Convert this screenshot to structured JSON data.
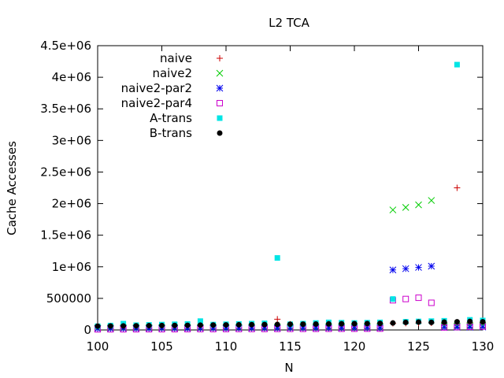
{
  "chart_data": {
    "type": "scatter",
    "title": "L2 TCA",
    "xlabel": "N",
    "ylabel": "Cache Accesses",
    "xlim": [
      100,
      130
    ],
    "ylim": [
      0,
      4500000
    ],
    "xticks": [
      100,
      105,
      110,
      115,
      120,
      125,
      130
    ],
    "xtick_labels": [
      "100",
      "105",
      "110",
      "115",
      "120",
      "125",
      "130"
    ],
    "yticks": [
      0,
      500000,
      1000000,
      1500000,
      2000000,
      2500000,
      3000000,
      3500000,
      4000000,
      4500000
    ],
    "ytick_labels": [
      "0",
      "500000",
      "1e+06",
      "1.5e+06",
      "2e+06",
      "2.5e+06",
      "3e+06",
      "3.5e+06",
      "4e+06",
      "4.5e+06"
    ],
    "grid": false,
    "legend_position": "top-left",
    "series": [
      {
        "name": "naive",
        "marker": "plus",
        "color": "#cc0000",
        "points": [
          [
            100,
            60000
          ],
          [
            101,
            62000
          ],
          [
            102,
            64000
          ],
          [
            103,
            66000
          ],
          [
            104,
            68000
          ],
          [
            105,
            70000
          ],
          [
            106,
            72000
          ],
          [
            107,
            74000
          ],
          [
            108,
            76000
          ],
          [
            109,
            78000
          ],
          [
            110,
            80000
          ],
          [
            111,
            82000
          ],
          [
            112,
            84000
          ],
          [
            113,
            86000
          ],
          [
            114,
            170000
          ],
          [
            115,
            90000
          ],
          [
            116,
            92000
          ],
          [
            117,
            94000
          ],
          [
            118,
            96000
          ],
          [
            119,
            98000
          ],
          [
            120,
            100000
          ],
          [
            121,
            102000
          ],
          [
            122,
            104000
          ],
          [
            123,
            106000
          ],
          [
            124,
            108000
          ],
          [
            125,
            110000
          ],
          [
            126,
            112000
          ],
          [
            127,
            114000
          ],
          [
            128,
            2250000
          ],
          [
            129,
            118000
          ],
          [
            130,
            120000
          ]
        ]
      },
      {
        "name": "naive2",
        "marker": "cross",
        "color": "#00cc00",
        "points": [
          [
            100,
            30000
          ],
          [
            101,
            31000
          ],
          [
            102,
            32000
          ],
          [
            103,
            33000
          ],
          [
            104,
            34000
          ],
          [
            105,
            35000
          ],
          [
            106,
            36000
          ],
          [
            107,
            37000
          ],
          [
            108,
            38000
          ],
          [
            109,
            39000
          ],
          [
            110,
            40000
          ],
          [
            111,
            41000
          ],
          [
            112,
            42000
          ],
          [
            113,
            43000
          ],
          [
            114,
            44000
          ],
          [
            115,
            45000
          ],
          [
            116,
            46000
          ],
          [
            117,
            47000
          ],
          [
            118,
            48000
          ],
          [
            119,
            49000
          ],
          [
            120,
            50000
          ],
          [
            121,
            51000
          ],
          [
            122,
            52000
          ],
          [
            123,
            1900000
          ],
          [
            124,
            1940000
          ],
          [
            125,
            1980000
          ],
          [
            126,
            2050000
          ],
          [
            127,
            60000
          ],
          [
            128,
            62000
          ],
          [
            129,
            64000
          ],
          [
            130,
            66000
          ]
        ]
      },
      {
        "name": "naive2-par2",
        "marker": "star",
        "color": "#0000ee",
        "points": [
          [
            100,
            20000
          ],
          [
            101,
            20500
          ],
          [
            102,
            21000
          ],
          [
            103,
            21500
          ],
          [
            104,
            22000
          ],
          [
            105,
            22500
          ],
          [
            106,
            23000
          ],
          [
            107,
            23500
          ],
          [
            108,
            24000
          ],
          [
            109,
            24500
          ],
          [
            110,
            25000
          ],
          [
            111,
            25500
          ],
          [
            112,
            26000
          ],
          [
            113,
            26500
          ],
          [
            114,
            27000
          ],
          [
            115,
            27500
          ],
          [
            116,
            28000
          ],
          [
            117,
            28500
          ],
          [
            118,
            29000
          ],
          [
            119,
            29500
          ],
          [
            120,
            30000
          ],
          [
            121,
            30500
          ],
          [
            122,
            31000
          ],
          [
            123,
            950000
          ],
          [
            124,
            970000
          ],
          [
            125,
            990000
          ],
          [
            126,
            1010000
          ],
          [
            127,
            40000
          ],
          [
            128,
            42000
          ],
          [
            129,
            44000
          ],
          [
            130,
            46000
          ]
        ]
      },
      {
        "name": "naive2-par4",
        "marker": "square-open",
        "color": "#cc00cc",
        "points": [
          [
            100,
            10000
          ],
          [
            101,
            10500
          ],
          [
            102,
            11000
          ],
          [
            103,
            11500
          ],
          [
            104,
            12000
          ],
          [
            105,
            12500
          ],
          [
            106,
            13000
          ],
          [
            107,
            13500
          ],
          [
            108,
            14000
          ],
          [
            109,
            14500
          ],
          [
            110,
            15000
          ],
          [
            111,
            15500
          ],
          [
            112,
            16000
          ],
          [
            113,
            16500
          ],
          [
            114,
            17000
          ],
          [
            115,
            17500
          ],
          [
            116,
            18000
          ],
          [
            117,
            18500
          ],
          [
            118,
            19000
          ],
          [
            119,
            19500
          ],
          [
            120,
            20000
          ],
          [
            121,
            20500
          ],
          [
            122,
            21000
          ],
          [
            123,
            470000
          ],
          [
            124,
            490000
          ],
          [
            125,
            510000
          ],
          [
            126,
            430000
          ],
          [
            127,
            40000
          ],
          [
            128,
            45000
          ],
          [
            129,
            50000
          ],
          [
            130,
            55000
          ]
        ]
      },
      {
        "name": "A-trans",
        "marker": "square-filled",
        "color": "#00e5e5",
        "points": [
          [
            100,
            60000
          ],
          [
            101,
            70000
          ],
          [
            102,
            100000
          ],
          [
            103,
            75000
          ],
          [
            104,
            80000
          ],
          [
            105,
            85000
          ],
          [
            106,
            90000
          ],
          [
            107,
            95000
          ],
          [
            108,
            140000
          ],
          [
            109,
            85000
          ],
          [
            110,
            90000
          ],
          [
            111,
            95000
          ],
          [
            112,
            100000
          ],
          [
            113,
            105000
          ],
          [
            114,
            1140000
          ],
          [
            115,
            90000
          ],
          [
            116,
            100000
          ],
          [
            117,
            110000
          ],
          [
            118,
            120000
          ],
          [
            119,
            115000
          ],
          [
            120,
            110000
          ],
          [
            121,
            115000
          ],
          [
            122,
            120000
          ],
          [
            123,
            490000
          ],
          [
            124,
            130000
          ],
          [
            125,
            135000
          ],
          [
            126,
            140000
          ],
          [
            127,
            145000
          ],
          [
            128,
            4200000
          ],
          [
            129,
            160000
          ],
          [
            130,
            150000
          ]
        ]
      },
      {
        "name": "B-trans",
        "marker": "circle-filled",
        "color": "#000000",
        "points": [
          [
            100,
            60000
          ],
          [
            101,
            62000
          ],
          [
            102,
            64000
          ],
          [
            103,
            66000
          ],
          [
            104,
            68000
          ],
          [
            105,
            70000
          ],
          [
            106,
            72000
          ],
          [
            107,
            74000
          ],
          [
            108,
            76000
          ],
          [
            109,
            78000
          ],
          [
            110,
            80000
          ],
          [
            111,
            82000
          ],
          [
            112,
            84000
          ],
          [
            113,
            86000
          ],
          [
            114,
            88000
          ],
          [
            115,
            90000
          ],
          [
            116,
            92000
          ],
          [
            117,
            94000
          ],
          [
            118,
            96000
          ],
          [
            119,
            98000
          ],
          [
            120,
            100000
          ],
          [
            121,
            102000
          ],
          [
            122,
            104000
          ],
          [
            123,
            110000
          ],
          [
            124,
            120000
          ],
          [
            125,
            125000
          ],
          [
            126,
            120000
          ],
          [
            127,
            125000
          ],
          [
            128,
            130000
          ],
          [
            129,
            135000
          ],
          [
            130,
            130000
          ]
        ]
      }
    ]
  }
}
